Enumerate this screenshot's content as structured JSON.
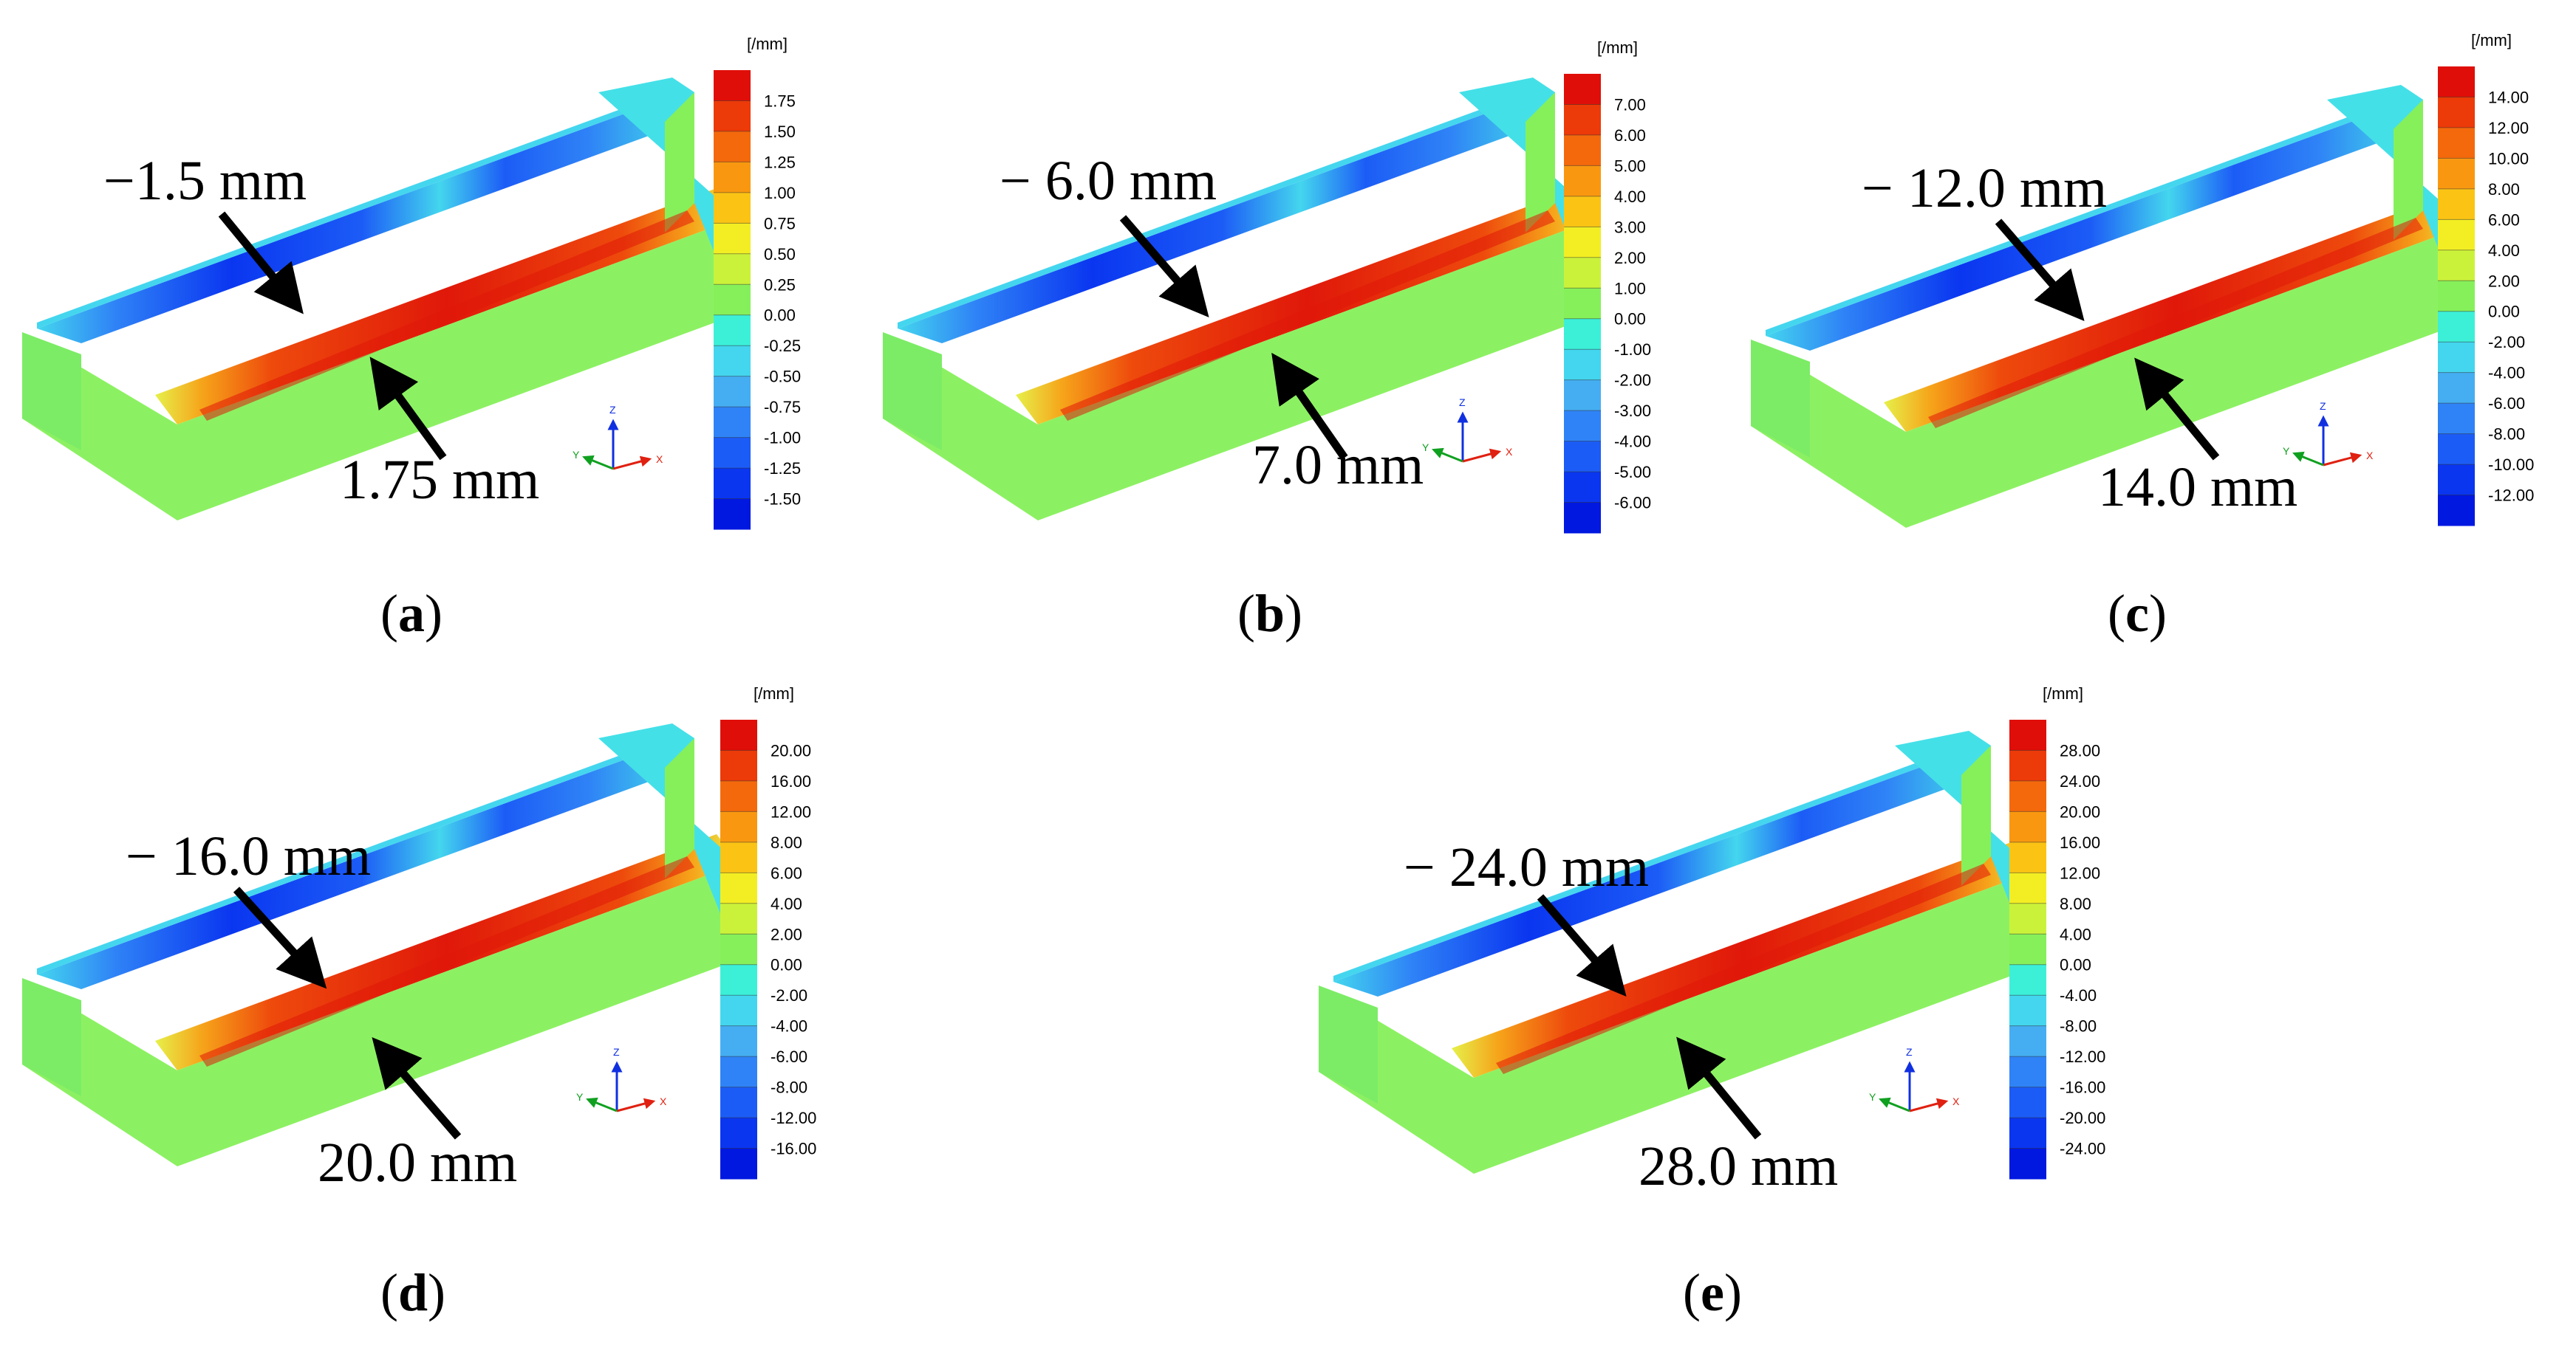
{
  "colormap": [
    "#0018e0",
    "#0a36f0",
    "#1c5cf6",
    "#2f83f6",
    "#45aef2",
    "#44d6ee",
    "#3cf0d8",
    "#86f05a",
    "#cbf23a",
    "#f2ee23",
    "#fbc414",
    "#f99810",
    "#f4690c",
    "#ec3a08",
    "#e00e08"
  ],
  "panels": [
    {
      "id": "a",
      "label": "a",
      "min_annotation": "−1.5 mm",
      "max_annotation": "1.75 mm",
      "unit": "[/mm]",
      "ticks": [
        "1.75",
        "1.50",
        "1.25",
        "1.00",
        "0.75",
        "0.50",
        "0.25",
        "0.00",
        "-0.25",
        "-0.50",
        "-0.75",
        "-1.00",
        "-1.25",
        "-1.50"
      ]
    },
    {
      "id": "b",
      "label": "b",
      "min_annotation": "− 6.0 mm",
      "max_annotation": "7.0 mm",
      "unit": "[/mm]",
      "ticks": [
        "7.00",
        "6.00",
        "5.00",
        "4.00",
        "3.00",
        "2.00",
        "1.00",
        "0.00",
        "-1.00",
        "-2.00",
        "-3.00",
        "-4.00",
        "-5.00",
        "-6.00"
      ]
    },
    {
      "id": "c",
      "label": "c",
      "min_annotation": "− 12.0 mm",
      "max_annotation": "14.0 mm",
      "unit": "[/mm]",
      "ticks": [
        "14.00",
        "12.00",
        "10.00",
        "8.00",
        "6.00",
        "4.00",
        "2.00",
        "0.00",
        "-2.00",
        "-4.00",
        "-6.00",
        "-8.00",
        "-10.00",
        "-12.00"
      ]
    },
    {
      "id": "d",
      "label": "d",
      "min_annotation": "− 16.0 mm",
      "max_annotation": "20.0 mm",
      "unit": "[/mm]",
      "ticks": [
        "20.00",
        "16.00",
        "12.00",
        "8.00",
        "6.00",
        "4.00",
        "2.00",
        "0.00",
        "-2.00",
        "-4.00",
        "-6.00",
        "-8.00",
        "-12.00",
        "-16.00"
      ]
    },
    {
      "id": "e",
      "label": "e",
      "min_annotation": "− 24.0 mm",
      "max_annotation": "28.0 mm",
      "unit": "[/mm]",
      "ticks": [
        "28.00",
        "24.00",
        "20.00",
        "16.00",
        "12.00",
        "8.00",
        "4.00",
        "0.00",
        "-4.00",
        "-8.00",
        "-12.00",
        "-16.00",
        "-20.00",
        "-24.00"
      ]
    }
  ],
  "axes": {
    "z": "Z",
    "y": "Y",
    "x": "X"
  }
}
